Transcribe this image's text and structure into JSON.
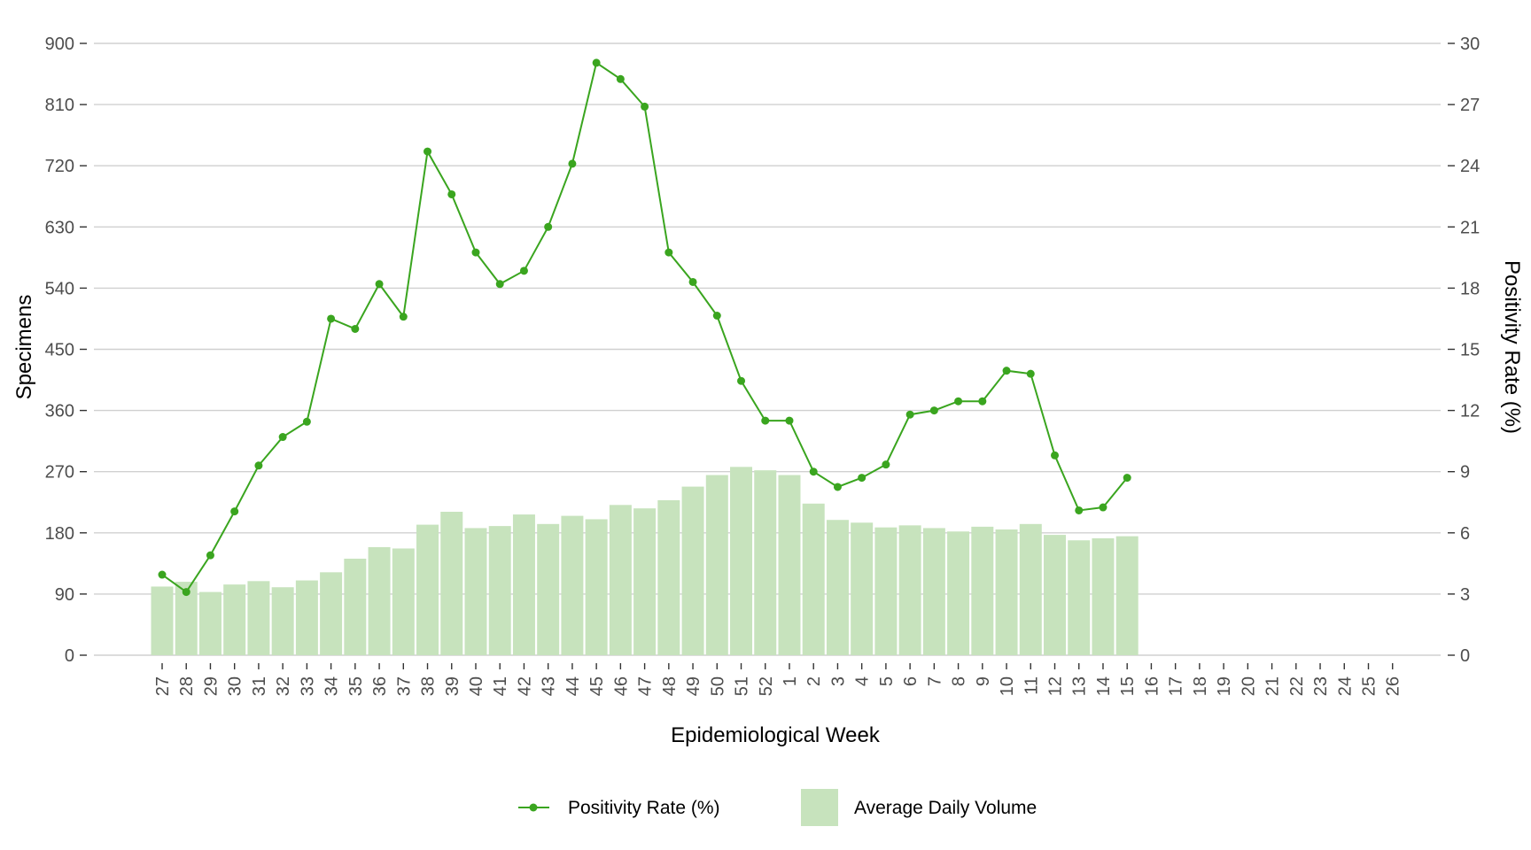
{
  "chart_data": {
    "type": "bar+line",
    "xlabel": "Epidemiological Week",
    "ylabel_left": "Specimens",
    "ylabel_right": "Positivity Rate (%)",
    "ylim_left": [
      0,
      900
    ],
    "ylim_right": [
      0,
      30
    ],
    "yticks_left": [
      "0",
      "90",
      "180",
      "270",
      "360",
      "450",
      "540",
      "630",
      "720",
      "810",
      "900"
    ],
    "yticks_right": [
      "0",
      "3",
      "6",
      "9",
      "12",
      "15",
      "18",
      "21",
      "24",
      "27",
      "30"
    ],
    "grid": "horizontal",
    "legend_position": "bottom",
    "categories": [
      "27",
      "28",
      "29",
      "30",
      "31",
      "32",
      "33",
      "34",
      "35",
      "36",
      "37",
      "38",
      "39",
      "40",
      "41",
      "42",
      "43",
      "44",
      "45",
      "46",
      "47",
      "48",
      "49",
      "50",
      "51",
      "52",
      "1",
      "2",
      "3",
      "4",
      "5",
      "6",
      "7",
      "8",
      "9",
      "10",
      "11",
      "12",
      "13",
      "14",
      "15",
      "16",
      "17",
      "18",
      "19",
      "20",
      "21",
      "22",
      "23",
      "24",
      "25",
      "26"
    ],
    "series": [
      {
        "name": "Average Daily Volume",
        "kind": "bar",
        "axis": "left",
        "color": "#c7e3bd",
        "values": [
          101,
          108,
          93,
          104,
          109,
          100,
          110,
          122,
          142,
          159,
          157,
          192,
          211,
          187,
          190,
          207,
          193,
          205,
          200,
          221,
          216,
          228,
          248,
          265,
          277,
          272,
          265,
          223,
          199,
          195,
          188,
          191,
          187,
          182,
          189,
          185,
          193,
          177,
          169,
          172,
          175,
          null,
          null,
          null,
          null,
          null,
          null,
          null,
          null,
          null,
          null,
          null
        ]
      },
      {
        "name": "Positivity Rate (%)",
        "kind": "line",
        "axis": "right",
        "color": "#3aa51f",
        "values": [
          3.95,
          3.1,
          4.9,
          7.05,
          9.3,
          10.7,
          11.45,
          16.5,
          16.0,
          18.2,
          16.6,
          24.7,
          22.6,
          19.75,
          18.2,
          18.85,
          21.0,
          24.1,
          29.05,
          28.25,
          26.9,
          19.75,
          18.3,
          16.65,
          13.45,
          11.5,
          11.5,
          9.0,
          8.25,
          8.7,
          9.35,
          11.8,
          12.0,
          12.45,
          12.45,
          13.95,
          13.8,
          9.8,
          7.1,
          7.25,
          8.7,
          null,
          null,
          null,
          null,
          null,
          null,
          null,
          null,
          null,
          null,
          null
        ]
      }
    ]
  },
  "legend": {
    "line_label": "Positivity Rate (%)",
    "bar_label": "Average Daily Volume"
  }
}
